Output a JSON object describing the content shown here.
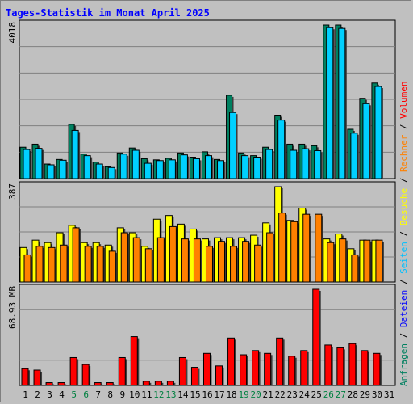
{
  "title": "Tages-Statistik im Monat April 2025",
  "colors": {
    "background": "#c0c0c0",
    "grid": "#808080",
    "anfragen": "#008060",
    "dateien": "#0000ff",
    "dateien_fill": "#00d0ff",
    "seiten": "#00c0ff",
    "besuche": "#ffff00",
    "rechner": "#ff8000",
    "volumen": "#ff0000",
    "weekend_label": "#008040"
  },
  "chart_data": [
    {
      "type": "bar",
      "axis_max_label": "4018",
      "ylim": [
        0,
        4018
      ],
      "legend_placement": "right-vertical",
      "series": [
        {
          "name": "Anfragen",
          "values": [
            820,
            900,
            380,
            500,
            1420,
            640,
            430,
            310,
            670,
            800,
            520,
            490,
            530,
            670,
            560,
            700,
            500,
            2180,
            670,
            600,
            820,
            1660,
            900,
            900,
            860,
            4018,
            4018,
            1290,
            2100,
            2500
          ]
        },
        {
          "name": "Dateien",
          "values": [
            760,
            790,
            360,
            480,
            1260,
            600,
            380,
            290,
            640,
            740,
            400,
            470,
            490,
            620,
            520,
            600,
            470,
            1730,
            600,
            560,
            760,
            1530,
            740,
            780,
            730,
            3950,
            3930,
            1190,
            1960,
            2410
          ]
        }
      ]
    },
    {
      "type": "bar",
      "axis_max_label": "387",
      "ylim": [
        0,
        387
      ],
      "series": [
        {
          "name": "Seiten",
          "values": [
            0,
            0,
            0,
            0,
            0,
            0,
            0,
            0,
            0,
            0,
            0,
            0,
            0,
            0,
            0,
            0,
            0,
            0,
            0,
            0,
            0,
            0,
            0,
            0,
            0,
            0,
            0,
            0,
            0,
            0
          ]
        },
        {
          "name": "Besuche",
          "values": [
            140,
            170,
            160,
            200,
            230,
            160,
            160,
            150,
            220,
            200,
            145,
            255,
            270,
            235,
            215,
            175,
            180,
            180,
            180,
            190,
            240,
            387,
            250,
            300,
            0,
            175,
            195,
            135,
            170,
            170
          ]
        },
        {
          "name": "Rechner",
          "values": [
            110,
            145,
            140,
            150,
            220,
            145,
            145,
            125,
            200,
            180,
            135,
            180,
            225,
            175,
            175,
            145,
            165,
            145,
            165,
            150,
            200,
            280,
            245,
            275,
            275,
            160,
            175,
            110,
            170,
            170
          ]
        }
      ]
    },
    {
      "type": "bar",
      "axis_max_label": "68.93 MB",
      "ylim": [
        0,
        68.93
      ],
      "series": [
        {
          "name": "Volumen",
          "values": [
            12,
            11,
            2,
            2,
            20,
            15,
            2,
            2,
            20,
            35,
            3,
            3,
            3,
            20,
            13,
            23,
            14,
            34,
            22,
            25,
            23,
            34,
            21,
            25,
            68.93,
            29,
            27,
            30,
            25,
            23
          ]
        }
      ]
    }
  ],
  "x_labels": [
    "1",
    "2",
    "3",
    "4",
    "5",
    "6",
    "7",
    "8",
    "9",
    "10",
    "11",
    "12",
    "13",
    "14",
    "15",
    "16",
    "17",
    "18",
    "19",
    "20",
    "21",
    "22",
    "23",
    "24",
    "25",
    "26",
    "27",
    "28",
    "29",
    "30",
    "31"
  ],
  "weekend_days": [
    5,
    6,
    12,
    13,
    19,
    20,
    26,
    27
  ],
  "legend": {
    "top": [
      {
        "text": "Anfragen",
        "color": "#008060"
      },
      {
        "text": " / ",
        "color": "#000000"
      },
      {
        "text": "Dateien",
        "color": "#0000ff"
      },
      {
        "text": " / ",
        "color": "#000000"
      },
      {
        "text": "Seiten",
        "color": "#00c0ff"
      },
      {
        "text": " / ",
        "color": "#000000"
      },
      {
        "text": "Besuche",
        "color": "#ffff00"
      },
      {
        "text": " / ",
        "color": "#000000"
      },
      {
        "text": "Rechner",
        "color": "#ff8000"
      },
      {
        "text": " / ",
        "color": "#000000"
      },
      {
        "text": "Volumen",
        "color": "#ff0000"
      }
    ]
  }
}
